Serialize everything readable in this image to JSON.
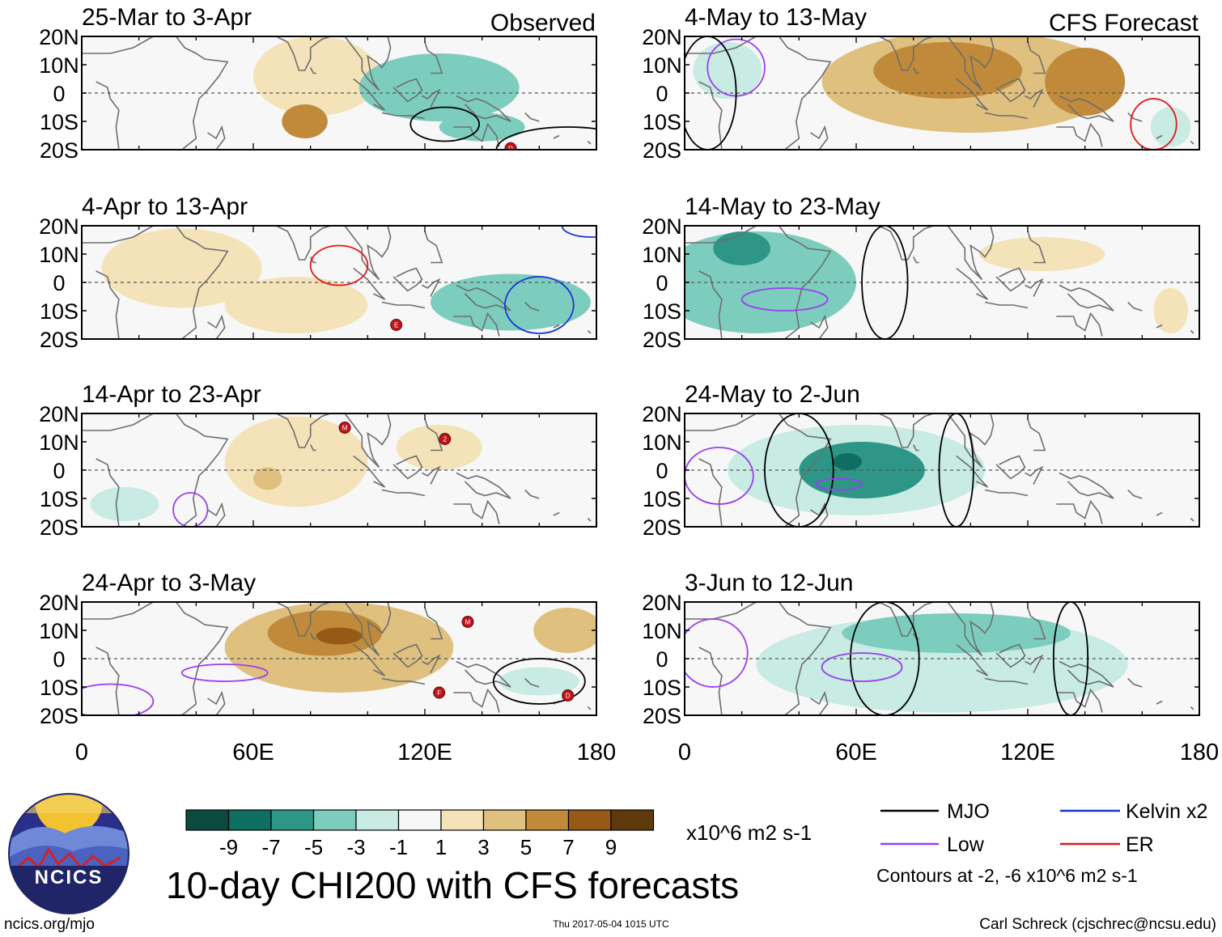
{
  "chart_data": {
    "type": "heatmap",
    "title": "10-day CHI200 with CFS forecasts",
    "units": "x10^6 m2 s-1",
    "x_ticks": [
      "0",
      "60E",
      "120E",
      "180"
    ],
    "y_ticks": [
      "20N",
      "10N",
      "0",
      "10S",
      "20S"
    ],
    "xlim": [
      0,
      180
    ],
    "ylim": [
      -20,
      20
    ],
    "colorbar": {
      "ticks": [
        "-9",
        "-7",
        "-5",
        "-3",
        "-1",
        "1",
        "3",
        "5",
        "7",
        "9"
      ],
      "colors": [
        "#0b4a3f",
        "#0f6e62",
        "#2e9686",
        "#7ccdbd",
        "#c8ebe3",
        "#f7f7f7",
        "#f4e2b8",
        "#dfc07e",
        "#c08a3a",
        "#965a16",
        "#5e3a0c"
      ]
    },
    "panels": [
      {
        "label": "25-Mar to 3-Apr",
        "corner": "Observed",
        "shapes": [
          {
            "lon": 82,
            "lat": 6,
            "rx": 22,
            "ry": 14,
            "level": 1
          },
          {
            "lon": 78,
            "lat": -10,
            "rx": 8,
            "ry": 6,
            "level": 3
          },
          {
            "lon": 125,
            "lat": 2,
            "rx": 28,
            "ry": 12,
            "level": -2
          },
          {
            "lon": 140,
            "lat": -12,
            "rx": 15,
            "ry": 5,
            "level": -2
          }
        ],
        "contours": [
          {
            "type": "MJO",
            "lon": 127,
            "lat": -11,
            "rx": 12,
            "ry": 6
          },
          {
            "type": "MJO",
            "lon": 170,
            "lat": -20,
            "rx": 25,
            "ry": 8
          }
        ],
        "markers": [
          {
            "lon": 150,
            "lat": -19.5,
            "label": "D"
          }
        ]
      },
      {
        "label": "4-May to 13-May",
        "corner": "CFS Forecast",
        "shapes": [
          {
            "lon": 100,
            "lat": 4,
            "rx": 52,
            "ry": 18,
            "level": 2
          },
          {
            "lon": 92,
            "lat": 8,
            "rx": 26,
            "ry": 10,
            "level": 3
          },
          {
            "lon": 140,
            "lat": 4,
            "rx": 14,
            "ry": 12,
            "level": 3
          },
          {
            "lon": 170,
            "lat": -12,
            "rx": 7,
            "ry": 7,
            "level": -1
          },
          {
            "lon": 15,
            "lat": 8,
            "rx": 12,
            "ry": 10,
            "level": -1
          }
        ],
        "contours": [
          {
            "type": "ER",
            "lon": 164,
            "lat": -11,
            "rx": 8,
            "ry": 9
          },
          {
            "type": "Low",
            "lon": 18,
            "lat": 9,
            "rx": 10,
            "ry": 10
          },
          {
            "type": "MJO",
            "lon": 8,
            "lat": 0,
            "rx": 10,
            "ry": 20
          }
        ],
        "markers": []
      },
      {
        "label": "4-Apr to 13-Apr",
        "corner": "",
        "shapes": [
          {
            "lon": 35,
            "lat": 5,
            "rx": 28,
            "ry": 14,
            "level": 1
          },
          {
            "lon": 75,
            "lat": -8,
            "rx": 25,
            "ry": 10,
            "level": 1
          },
          {
            "lon": 150,
            "lat": -7,
            "rx": 28,
            "ry": 10,
            "level": -2
          }
        ],
        "contours": [
          {
            "type": "ER",
            "lon": 90,
            "lat": 6,
            "rx": 10,
            "ry": 7
          },
          {
            "type": "Kelvin x2",
            "lon": 160,
            "lat": -8,
            "rx": 12,
            "ry": 10
          },
          {
            "type": "Kelvin x2",
            "lon": 178,
            "lat": 20,
            "rx": 10,
            "ry": 4
          }
        ],
        "markers": [
          {
            "lon": 110,
            "lat": -15,
            "label": "E"
          }
        ]
      },
      {
        "label": "14-May to 23-May",
        "corner": "",
        "shapes": [
          {
            "lon": 25,
            "lat": 0,
            "rx": 35,
            "ry": 18,
            "level": -2
          },
          {
            "lon": 20,
            "lat": 12,
            "rx": 10,
            "ry": 6,
            "level": -3
          },
          {
            "lon": 125,
            "lat": 10,
            "rx": 22,
            "ry": 6,
            "level": 1
          },
          {
            "lon": 170,
            "lat": -10,
            "rx": 6,
            "ry": 8,
            "level": 1
          }
        ],
        "contours": [
          {
            "type": "MJO",
            "lon": 70,
            "lat": 0,
            "rx": 8,
            "ry": 20
          },
          {
            "type": "Low",
            "lon": 35,
            "lat": -6,
            "rx": 15,
            "ry": 4
          }
        ],
        "markers": []
      },
      {
        "label": "14-Apr to 23-Apr",
        "corner": "",
        "shapes": [
          {
            "lon": 75,
            "lat": 3,
            "rx": 25,
            "ry": 16,
            "level": 1
          },
          {
            "lon": 125,
            "lat": 8,
            "rx": 15,
            "ry": 8,
            "level": 1
          },
          {
            "lon": 65,
            "lat": -3,
            "rx": 5,
            "ry": 4,
            "level": 2
          },
          {
            "lon": 15,
            "lat": -12,
            "rx": 12,
            "ry": 6,
            "level": -1
          }
        ],
        "contours": [
          {
            "type": "Low",
            "lon": 38,
            "lat": -14,
            "rx": 6,
            "ry": 6
          }
        ],
        "markers": [
          {
            "lon": 92,
            "lat": 15,
            "label": "M"
          },
          {
            "lon": 127,
            "lat": 11,
            "label": "2"
          }
        ]
      },
      {
        "label": "24-May to 2-Jun",
        "corner": "",
        "shapes": [
          {
            "lon": 60,
            "lat": 0,
            "rx": 45,
            "ry": 16,
            "level": -1
          },
          {
            "lon": 62,
            "lat": 0,
            "rx": 22,
            "ry": 10,
            "level": -3
          },
          {
            "lon": 57,
            "lat": 3,
            "rx": 5,
            "ry": 3,
            "level": -4
          }
        ],
        "contours": [
          {
            "type": "MJO",
            "lon": 40,
            "lat": 0,
            "rx": 12,
            "ry": 20
          },
          {
            "type": "MJO",
            "lon": 95,
            "lat": 0,
            "rx": 6,
            "ry": 20
          },
          {
            "type": "Low",
            "lon": 54,
            "lat": -5,
            "rx": 8,
            "ry": 2
          },
          {
            "type": "Low",
            "lon": 12,
            "lat": -2,
            "rx": 12,
            "ry": 10
          }
        ],
        "markers": []
      },
      {
        "label": "24-Apr to 3-May",
        "corner": "",
        "shapes": [
          {
            "lon": 90,
            "lat": 4,
            "rx": 40,
            "ry": 16,
            "level": 2
          },
          {
            "lon": 85,
            "lat": 9,
            "rx": 20,
            "ry": 8,
            "level": 3
          },
          {
            "lon": 90,
            "lat": 8,
            "rx": 8,
            "ry": 3,
            "level": 4
          },
          {
            "lon": 170,
            "lat": 10,
            "rx": 12,
            "ry": 8,
            "level": 2
          },
          {
            "lon": 160,
            "lat": -8,
            "rx": 14,
            "ry": 5,
            "level": -1
          }
        ],
        "contours": [
          {
            "type": "MJO",
            "lon": 160,
            "lat": -8,
            "rx": 16,
            "ry": 8
          },
          {
            "type": "Low",
            "lon": 10,
            "lat": -15,
            "rx": 15,
            "ry": 6
          },
          {
            "type": "Low",
            "lon": 50,
            "lat": -5,
            "rx": 15,
            "ry": 3
          }
        ],
        "markers": [
          {
            "lon": 135,
            "lat": 13,
            "label": "M"
          },
          {
            "lon": 125,
            "lat": -12,
            "label": "F"
          },
          {
            "lon": 170,
            "lat": -13,
            "label": "D"
          }
        ]
      },
      {
        "label": "3-Jun to 12-Jun",
        "corner": "",
        "shapes": [
          {
            "lon": 90,
            "lat": -2,
            "rx": 65,
            "ry": 17,
            "level": -1
          },
          {
            "lon": 95,
            "lat": 9,
            "rx": 40,
            "ry": 7,
            "level": -2
          }
        ],
        "contours": [
          {
            "type": "MJO",
            "lon": 70,
            "lat": 0,
            "rx": 12,
            "ry": 20
          },
          {
            "type": "MJO",
            "lon": 135,
            "lat": 0,
            "rx": 6,
            "ry": 20
          },
          {
            "type": "Low",
            "lon": 62,
            "lat": -3,
            "rx": 14,
            "ry": 5
          },
          {
            "type": "Low",
            "lon": 10,
            "lat": 2,
            "rx": 12,
            "ry": 12
          }
        ],
        "markers": []
      }
    ]
  },
  "legend": {
    "items": [
      {
        "label": "MJO",
        "color": "#000000"
      },
      {
        "label": "Kelvin x2",
        "color": "#1a33d9"
      },
      {
        "label": "Low",
        "color": "#9a3ff0"
      },
      {
        "label": "ER",
        "color": "#e01818"
      }
    ],
    "note": "Contours at -2, -6 x10^6 m2 s-1"
  },
  "footer": {
    "site": "ncics.org/mjo",
    "timestamp": "Thu 2017-05-04 1015 UTC",
    "author": "Carl Schreck (cjschrec@ncsu.edu)"
  },
  "logo": {
    "text": "NCICS"
  }
}
